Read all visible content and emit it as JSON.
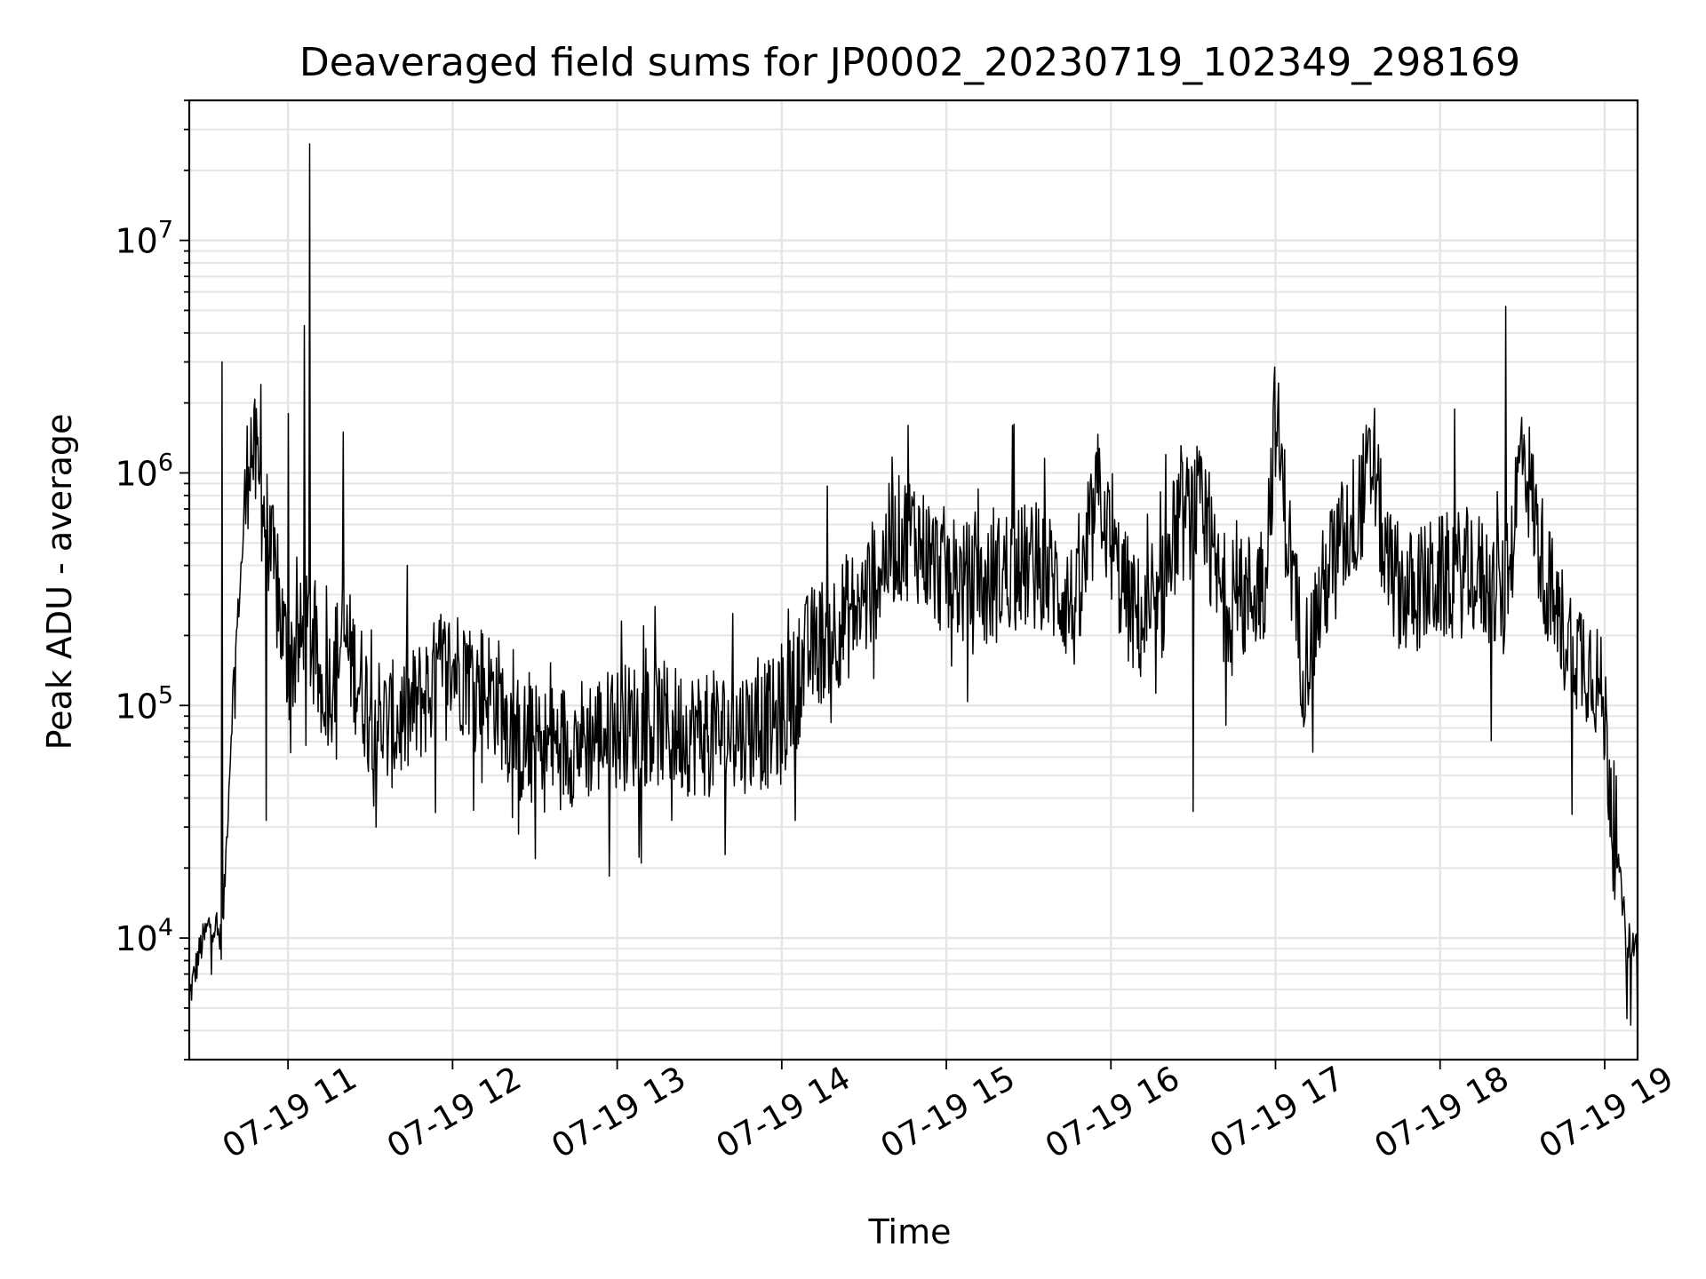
{
  "chart_data": {
    "type": "line",
    "title": "Deaveraged field sums for JP0002_20230719_102349_298169",
    "xlabel": "Time",
    "ylabel": "Peak ADU - average",
    "yscale": "log",
    "ylim": [
      3000,
      40000000
    ],
    "xlim": [
      "07-19 10:24",
      "07-19 19:12"
    ],
    "grid": true,
    "line_color": "#000000",
    "grid_color": "#e5e5e5",
    "x_ticks": [
      "07-19 11",
      "07-19 12",
      "07-19 13",
      "07-19 14",
      "07-19 15",
      "07-19 16",
      "07-19 17",
      "07-19 18",
      "07-19 19"
    ],
    "y_ticks": [
      {
        "value": 10000,
        "base": "10",
        "exp": "4"
      },
      {
        "value": 100000,
        "base": "10",
        "exp": "5"
      },
      {
        "value": 1000000,
        "base": "10",
        "exp": "6"
      },
      {
        "value": 10000000,
        "base": "10",
        "exp": "7"
      }
    ],
    "series": [
      {
        "x": [
          "10:24",
          "10:28",
          "10:32",
          "10:36",
          "10:40",
          "10:44",
          "10:46",
          "10:48",
          "10:52",
          "10:56",
          "11:00",
          "11:04",
          "11:08",
          "11:10",
          "11:12",
          "11:16",
          "11:20",
          "11:28",
          "11:36",
          "11:44",
          "11:52",
          "12:00",
          "12:08",
          "12:16",
          "12:24",
          "12:32",
          "12:40",
          "12:48",
          "13:00",
          "13:12",
          "13:24",
          "13:36",
          "13:48",
          "14:00",
          "14:10",
          "14:20",
          "14:30",
          "14:40",
          "14:48",
          "14:56",
          "15:04",
          "15:12",
          "15:24",
          "15:36",
          "15:48",
          "15:56",
          "16:00",
          "16:08",
          "16:16",
          "16:24",
          "16:32",
          "16:40",
          "16:48",
          "16:56",
          "17:00",
          "17:04",
          "17:10",
          "17:20",
          "17:30",
          "17:36",
          "17:40",
          "17:48",
          "18:00",
          "18:12",
          "18:24",
          "18:30",
          "18:36",
          "18:42",
          "18:48",
          "18:56",
          "19:00",
          "19:04",
          "19:08",
          "19:12"
        ],
        "y": [
          5500,
          9000,
          12000,
          9500,
          120000,
          600000,
          1400000,
          1100000,
          600000,
          300000,
          150000,
          180000,
          200000,
          150000,
          120000,
          130000,
          200000,
          110000,
          80000,
          90000,
          120000,
          150000,
          130000,
          110000,
          70000,
          65000,
          68000,
          72000,
          80000,
          85000,
          78000,
          75000,
          80000,
          85000,
          170000,
          220000,
          280000,
          500000,
          550000,
          400000,
          350000,
          300000,
          400000,
          380000,
          250000,
          900000,
          450000,
          250000,
          200000,
          600000,
          700000,
          300000,
          280000,
          350000,
          1800000,
          600000,
          150000,
          400000,
          700000,
          1100000,
          400000,
          300000,
          350000,
          380000,
          280000,
          1400000,
          500000,
          250000,
          180000,
          150000,
          90000,
          25000,
          10000,
          9000
        ]
      }
    ],
    "peaks": [
      {
        "t": "10:36",
        "y": 3000000
      },
      {
        "t": "10:50",
        "y": 2400000
      },
      {
        "t": "11:00",
        "y": 1800000
      },
      {
        "t": "11:06",
        "y": 4300000
      },
      {
        "t": "11:08",
        "y": 26000000
      },
      {
        "t": "11:20",
        "y": 1500000
      },
      {
        "t": "14:46",
        "y": 1600000
      },
      {
        "t": "15:24",
        "y": 1600000
      },
      {
        "t": "16:20",
        "y": 1200000
      },
      {
        "t": "18:24",
        "y": 5200000
      }
    ],
    "dips": [
      {
        "t": "10:52",
        "y": 32000
      },
      {
        "t": "11:32",
        "y": 30000
      },
      {
        "t": "12:24",
        "y": 28000
      },
      {
        "t": "13:20",
        "y": 32000
      },
      {
        "t": "14:05",
        "y": 32000
      },
      {
        "t": "16:30",
        "y": 35000
      },
      {
        "t": "18:48",
        "y": 34000
      },
      {
        "t": "19:08",
        "y": 4500
      }
    ]
  }
}
